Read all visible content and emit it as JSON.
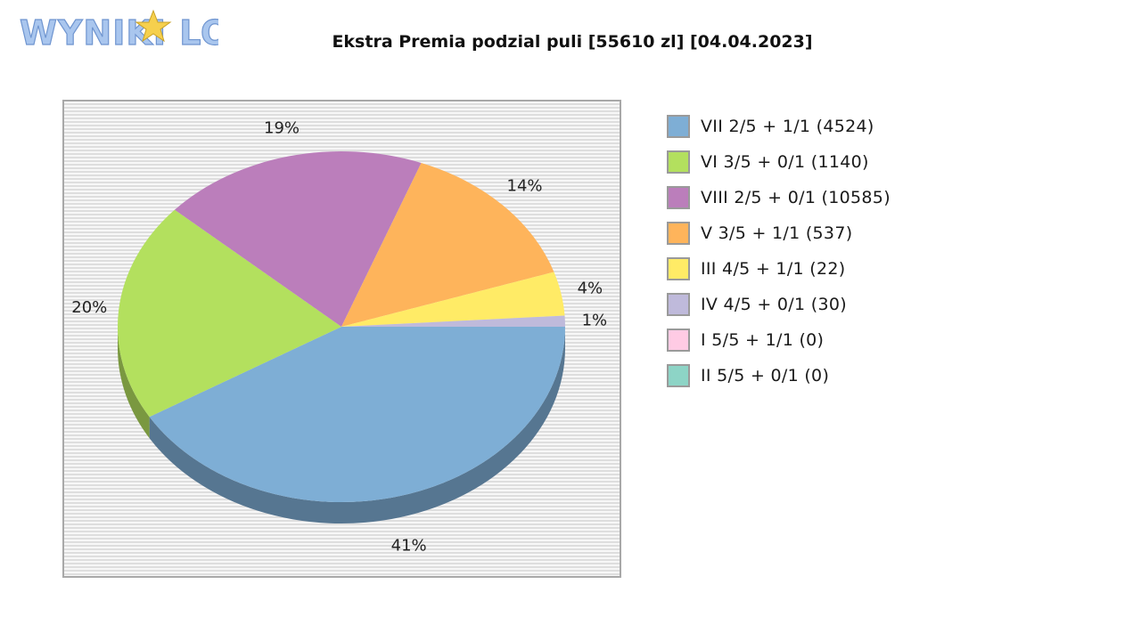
{
  "logo": {
    "text": "WYNIKI LOTTO"
  },
  "chart_data": {
    "type": "pie",
    "title": "Ekstra Premia podzial puli [55610 zl] [04.04.2023]",
    "legend_position": "right",
    "slices": [
      {
        "label": "VII 2/5 + 1/1 (4524)",
        "percent": 41,
        "pct_label": "41%",
        "color": "#7eaed5"
      },
      {
        "label": "VI 3/5 + 0/1 (1140)",
        "percent": 20,
        "pct_label": "20%",
        "color": "#b3e05e"
      },
      {
        "label": "VIII 2/5 + 0/1 (10585)",
        "percent": 19,
        "pct_label": "19%",
        "color": "#bb7ebb"
      },
      {
        "label": "V 3/5 + 1/1 (537)",
        "percent": 14,
        "pct_label": "14%",
        "color": "#feb45b"
      },
      {
        "label": "III 4/5 + 1/1 (22)",
        "percent": 4,
        "pct_label": "4%",
        "color": "#ffeb66"
      },
      {
        "label": "IV 4/5 + 0/1 (30)",
        "percent": 1,
        "pct_label": "1%",
        "color": "#bfbadb"
      },
      {
        "label": "I 5/5 + 1/1 (0)",
        "percent": 0,
        "pct_label": "",
        "color": "#ffcbe4"
      },
      {
        "label": "II 5/5 + 0/1 (0)",
        "percent": 0,
        "pct_label": "",
        "color": "#8dd4c6"
      }
    ]
  }
}
